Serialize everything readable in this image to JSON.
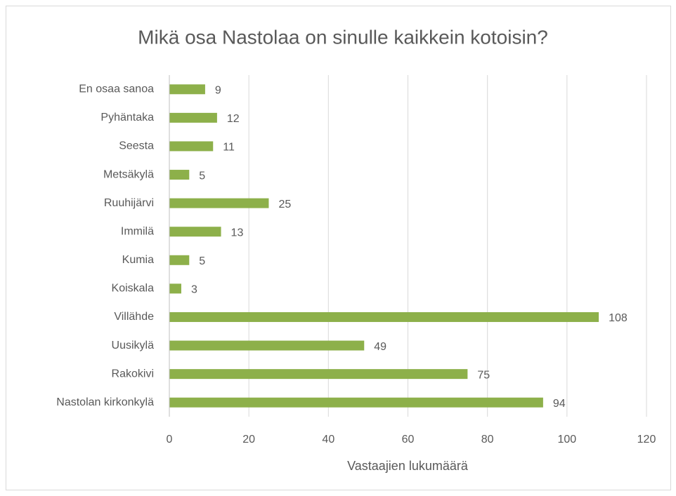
{
  "chart_data": {
    "type": "bar",
    "orientation": "horizontal",
    "title": "Mikä osa Nastolaa on sinulle kaikkein kotoisin?",
    "x_label": "Vastaajien lukumäärä",
    "categories": [
      "En osaa sanoa",
      "Pyhäntaka",
      "Seesta",
      "Metsäkylä",
      "Ruuhijärvi",
      "Immilä",
      "Kumia",
      "Koiskala",
      "Villähde",
      "Uusikylä",
      "Rakokivi",
      "Nastolan kirkonkylä"
    ],
    "values": [
      9,
      12,
      11,
      5,
      25,
      13,
      5,
      3,
      108,
      49,
      75,
      94
    ],
    "color": "#8db04a",
    "xlim": [
      0,
      120
    ],
    "xticks": [
      0,
      20,
      40,
      60,
      80,
      100,
      120
    ],
    "grid": true
  }
}
